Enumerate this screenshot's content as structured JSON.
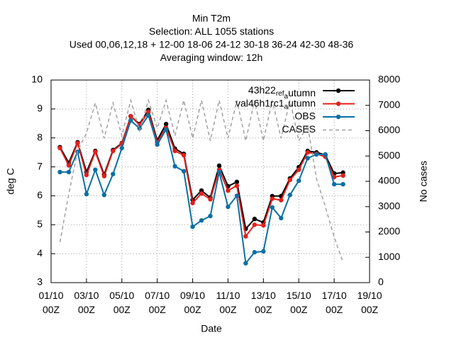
{
  "chart_data": {
    "type": "line",
    "title": [
      "Min T2m",
      "Selection: ALL   1055 stations",
      "Used  00,06,12,18  + 12-00 18-06 24-12 30-18 36-24 42-30 48-36",
      "Averaging window: 12h"
    ],
    "xlabel": "Date",
    "ylabel": "deg C",
    "y2label": "No cases",
    "x": [
      "01/10 12Z",
      "02/10 00Z",
      "02/10 12Z",
      "03/10 00Z",
      "03/10 12Z",
      "04/10 00Z",
      "04/10 12Z",
      "05/10 00Z",
      "05/10 12Z",
      "06/10 00Z",
      "06/10 12Z",
      "07/10 00Z",
      "07/10 12Z",
      "08/10 00Z",
      "08/10 12Z",
      "09/10 00Z",
      "09/10 12Z",
      "10/10 00Z",
      "10/10 12Z",
      "11/10 00Z",
      "11/10 12Z",
      "12/10 00Z",
      "12/10 12Z",
      "13/10 00Z",
      "13/10 12Z",
      "14/10 00Z",
      "14/10 12Z",
      "15/10 00Z",
      "15/10 12Z",
      "16/10 00Z",
      "16/10 12Z",
      "17/10 00Z",
      "17/10 12Z"
    ],
    "xlim": [
      "01/10 00Z",
      "19/10 00Z"
    ],
    "xticks": [
      "01/10 00Z",
      "03/10 00Z",
      "05/10 00Z",
      "07/10 00Z",
      "09/10 00Z",
      "11/10 00Z",
      "13/10 00Z",
      "15/10 00Z",
      "17/10 00Z",
      "19/10 00Z"
    ],
    "ylim": [
      3,
      10
    ],
    "yticks": [
      3,
      4,
      5,
      6,
      7,
      8,
      9,
      10
    ],
    "y2lim": [
      0,
      8000
    ],
    "y2ticks": [
      0,
      1000,
      2000,
      3000,
      4000,
      5000,
      6000,
      7000,
      8000
    ],
    "grid": true,
    "legend": "top-right",
    "series": [
      {
        "name": "43h22_ref_autumn",
        "color": "#000000",
        "values": [
          7.68,
          7.14,
          7.85,
          6.82,
          7.55,
          6.74,
          7.58,
          7.82,
          8.75,
          8.48,
          8.97,
          7.92,
          8.48,
          7.63,
          7.45,
          5.86,
          6.18,
          5.94,
          7.04,
          6.33,
          6.48,
          4.86,
          5.2,
          5.08,
          5.99,
          5.99,
          6.6,
          6.99,
          7.55,
          7.5,
          7.41,
          6.77,
          6.8
        ]
      },
      {
        "name": "val46h1rc1_autumn",
        "color": "#e0201b",
        "values": [
          7.65,
          7.05,
          7.82,
          6.72,
          7.52,
          6.68,
          7.55,
          7.8,
          8.75,
          8.45,
          8.9,
          7.85,
          8.35,
          7.55,
          7.4,
          5.75,
          6.08,
          5.88,
          6.9,
          6.18,
          6.35,
          4.6,
          5.0,
          4.98,
          5.9,
          5.85,
          6.55,
          6.9,
          7.5,
          7.45,
          7.35,
          6.65,
          6.7
        ]
      },
      {
        "name": "OBS",
        "color": "#0a6fa6",
        "values": [
          6.82,
          6.82,
          7.52,
          6.06,
          6.9,
          6.03,
          6.75,
          7.65,
          8.6,
          8.33,
          8.78,
          7.77,
          8.29,
          7.02,
          6.85,
          4.93,
          5.15,
          5.3,
          6.82,
          5.62,
          6.0,
          3.67,
          4.05,
          4.08,
          5.6,
          5.23,
          6.03,
          6.52,
          7.3,
          7.43,
          7.43,
          6.4,
          6.4
        ]
      },
      {
        "name": "CASES",
        "color": "#a0a0a0",
        "axis": "y2",
        "dashed": true,
        "values": [
          1600,
          3500,
          5200,
          5900,
          7100,
          5700,
          7100,
          5800,
          7200,
          6000,
          7200,
          6100,
          7200,
          5800,
          7200,
          5700,
          7200,
          5600,
          7200,
          5700,
          7200,
          5600,
          7200,
          5600,
          7200,
          5700,
          7200,
          5600,
          6200,
          4100,
          3000,
          1800,
          800
        ]
      }
    ]
  }
}
